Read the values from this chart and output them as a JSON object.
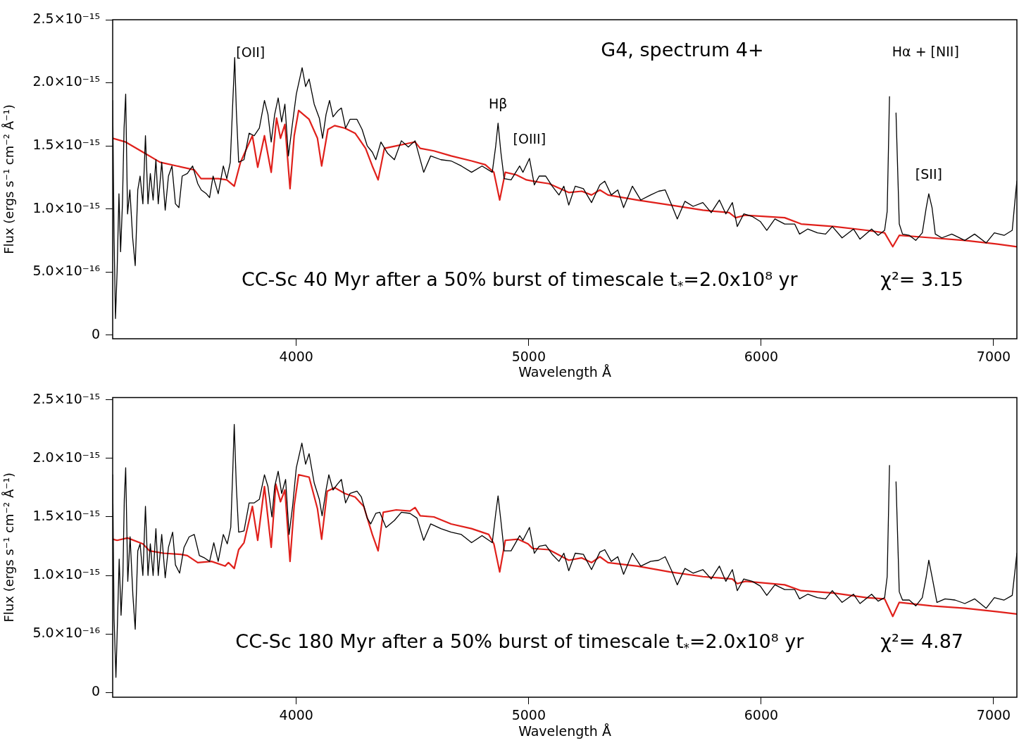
{
  "chart_data": [
    {
      "type": "line",
      "title": "G4, spectrum 4+",
      "xlabel": "Wavelength Å",
      "ylabel": "Flux (ergs s⁻¹ cm⁻² Å⁻¹)",
      "xlim": [
        3210,
        7100
      ],
      "xticks": [
        4000,
        5000,
        6000,
        7000
      ],
      "ylim": [
        -3e-17,
        2.5e-15
      ],
      "yticks": [
        0,
        {
          "value": 5e-16,
          "label": "5.0×10⁻¹⁶"
        },
        {
          "value": 1e-15,
          "label": "1.0×10⁻¹⁵"
        },
        {
          "value": 1.5e-15,
          "label": "1.5×10⁻¹⁵"
        },
        {
          "value": 2e-15,
          "label": "2.0×10⁻¹⁵"
        },
        {
          "value": 2.5e-15,
          "label": "2.5×10⁻¹⁵"
        }
      ],
      "series": [
        {
          "color": "#000000",
          "x": [
            3210,
            3216,
            3222,
            3229,
            3237,
            3244,
            3252,
            3259,
            3266,
            3274,
            3284,
            3296,
            3307,
            3318,
            3328,
            3340,
            3351,
            3362,
            3372,
            3384,
            3396,
            3406,
            3421,
            3436,
            3450,
            3465,
            3480,
            3495,
            3509,
            3531,
            3554,
            3576,
            3591,
            3613,
            3627,
            3642,
            3664,
            3686,
            3701,
            3716,
            3727,
            3735,
            3742,
            3752,
            3775,
            3797,
            3819,
            3841,
            3863,
            3878,
            3892,
            3907,
            3922,
            3937,
            3951,
            3966,
            3981,
            4000,
            4025,
            4040,
            4055,
            4077,
            4099,
            4113,
            4128,
            4143,
            4158,
            4180,
            4194,
            4212,
            4231,
            4261,
            4283,
            4305,
            4327,
            4342,
            4364,
            4393,
            4422,
            4452,
            4482,
            4511,
            4548,
            4578,
            4622,
            4666,
            4710,
            4754,
            4799,
            4843,
            4858,
            4868,
            4880,
            4894,
            4924,
            4961,
            4975,
            5003,
            5024,
            5045,
            5073,
            5101,
            5130,
            5151,
            5172,
            5200,
            5235,
            5270,
            5306,
            5327,
            5355,
            5383,
            5408,
            5446,
            5482,
            5524,
            5559,
            5587,
            5615,
            5639,
            5672,
            5707,
            5749,
            5785,
            5820,
            5848,
            5876,
            5897,
            5925,
            5961,
            5996,
            6024,
            6059,
            6101,
            6144,
            6165,
            6200,
            6242,
            6277,
            6306,
            6348,
            6397,
            6425,
            6475,
            6503,
            6531,
            6542,
            6552,
            6561,
            6570,
            6580,
            6594,
            6608,
            6637,
            6665,
            6693,
            6710,
            6721,
            6735,
            6749,
            6777,
            6820,
            6876,
            6918,
            6968,
            7003,
            7045,
            7080,
            7094,
            7100
          ],
          "values": [
            1.86e-15,
            7.7e-16,
            1.3e-16,
            5e-16,
            1.12e-15,
            6.6e-16,
            1.04e-15,
            1.64e-15,
            1.91e-15,
            9.6e-16,
            1.15e-15,
            7.7e-16,
            5.5e-16,
            1.15e-15,
            1.26e-15,
            1.04e-15,
            1.58e-15,
            1.04e-15,
            1.28e-15,
            1.07e-15,
            1.39e-15,
            1.04e-15,
            1.37e-15,
            9.9e-16,
            1.26e-15,
            1.34e-15,
            1.04e-15,
            1.01e-15,
            1.26e-15,
            1.28e-15,
            1.34e-15,
            1.2e-15,
            1.15e-15,
            1.12e-15,
            1.09e-15,
            1.26e-15,
            1.12e-15,
            1.34e-15,
            1.24e-15,
            1.37e-15,
            1.86e-15,
            2.2e-15,
            1.78e-15,
            1.37e-15,
            1.39e-15,
            1.6e-15,
            1.58e-15,
            1.64e-15,
            1.86e-15,
            1.75e-15,
            1.53e-15,
            1.75e-15,
            1.88e-15,
            1.69e-15,
            1.83e-15,
            1.42e-15,
            1.64e-15,
            1.91e-15,
            2.12e-15,
            1.97e-15,
            2.03e-15,
            1.83e-15,
            1.72e-15,
            1.56e-15,
            1.75e-15,
            1.86e-15,
            1.73e-15,
            1.78e-15,
            1.8e-15,
            1.64e-15,
            1.71e-15,
            1.71e-15,
            1.63e-15,
            1.5e-15,
            1.45e-15,
            1.39e-15,
            1.53e-15,
            1.44e-15,
            1.39e-15,
            1.54e-15,
            1.49e-15,
            1.54e-15,
            1.29e-15,
            1.42e-15,
            1.39e-15,
            1.38e-15,
            1.34e-15,
            1.29e-15,
            1.34e-15,
            1.29e-15,
            1.5e-15,
            1.68e-15,
            1.45e-15,
            1.24e-15,
            1.23e-15,
            1.34e-15,
            1.29e-15,
            1.4e-15,
            1.19e-15,
            1.26e-15,
            1.26e-15,
            1.18e-15,
            1.11e-15,
            1.18e-15,
            1.03e-15,
            1.18e-15,
            1.16e-15,
            1.05e-15,
            1.19e-15,
            1.22e-15,
            1.11e-15,
            1.15e-15,
            1.01e-15,
            1.18e-15,
            1.07e-15,
            1.11e-15,
            1.14e-15,
            1.15e-15,
            1.03e-15,
            9.2e-16,
            1.06e-15,
            1.02e-15,
            1.05e-15,
            9.7e-16,
            1.07e-15,
            9.6e-16,
            1.05e-15,
            8.6e-16,
            9.6e-16,
            9.4e-16,
            9e-16,
            8.3e-16,
            9.2e-16,
            8.8e-16,
            8.8e-16,
            8e-16,
            8.4e-16,
            8.1e-16,
            8e-16,
            8.6e-16,
            7.7e-16,
            8.4e-16,
            7.6e-16,
            8.4e-16,
            7.9e-16,
            8.3e-16,
            9.8e-16,
            1.89e-15,
            null,
            null,
            1.76e-15,
            8.8e-16,
            8e-16,
            7.9e-16,
            7.5e-16,
            8.1e-16,
            1.01e-15,
            1.12e-15,
            1.01e-15,
            8e-16,
            7.7e-16,
            8e-16,
            7.5e-16,
            8e-16,
            7.3e-16,
            8.1e-16,
            7.9e-16,
            8.3e-16,
            1.11e-15,
            1.22e-15
          ]
        },
        {
          "color": "#e0201b",
          "x": [
            3210,
            3266,
            3340,
            3414,
            3487,
            3561,
            3590,
            3664,
            3701,
            3733,
            3760,
            3811,
            3834,
            3863,
            3892,
            3915,
            3932,
            3951,
            3973,
            3991,
            4010,
            4055,
            4091,
            4109,
            4136,
            4165,
            4209,
            4253,
            4298,
            4327,
            4352,
            4379,
            4430,
            4482,
            4511,
            4533,
            4592,
            4666,
            4754,
            4813,
            4850,
            4875,
            4899,
            4946,
            4990,
            5017,
            5087,
            5172,
            5228,
            5270,
            5306,
            5341,
            5468,
            5608,
            5749,
            5862,
            5890,
            5932,
            6101,
            6172,
            6313,
            6454,
            6531,
            6566,
            6594,
            6735,
            6876,
            7017,
            7100
          ],
          "values": [
            1.56e-15,
            1.53e-15,
            1.45e-15,
            1.37e-15,
            1.34e-15,
            1.31e-15,
            1.24e-15,
            1.24e-15,
            1.23e-15,
            1.18e-15,
            1.37e-15,
            1.58e-15,
            1.33e-15,
            1.58e-15,
            1.29e-15,
            1.72e-15,
            1.56e-15,
            1.67e-15,
            1.16e-15,
            1.58e-15,
            1.78e-15,
            1.71e-15,
            1.56e-15,
            1.34e-15,
            1.63e-15,
            1.66e-15,
            1.64e-15,
            1.6e-15,
            1.48e-15,
            1.34e-15,
            1.23e-15,
            1.48e-15,
            1.5e-15,
            1.52e-15,
            1.53e-15,
            1.48e-15,
            1.46e-15,
            1.42e-15,
            1.38e-15,
            1.35e-15,
            1.29e-15,
            1.07e-15,
            1.29e-15,
            1.27e-15,
            1.23e-15,
            1.22e-15,
            1.2e-15,
            1.13e-15,
            1.14e-15,
            1.11e-15,
            1.15e-15,
            1.11e-15,
            1.07e-15,
            1.03e-15,
            9.9e-16,
            9.7e-16,
            9.3e-16,
            9.5e-16,
            9.3e-16,
            8.8e-16,
            8.6e-16,
            8.3e-16,
            8.1e-16,
            7e-16,
            7.9e-16,
            7.7e-16,
            7.5e-16,
            7.2e-16,
            7e-16
          ]
        }
      ],
      "annotations": [
        {
          "text": "[OII]",
          "x": 3735,
          "y": 2.2e-15
        },
        {
          "text": "Hβ",
          "x": 4868,
          "y": 1.68e-15
        },
        {
          "text": "[OIII]",
          "x": 5003,
          "y": 1.4e-15
        },
        {
          "text": "[SII]",
          "x": 6721,
          "y": 1.12e-15
        },
        "Hα + [NII]",
        "CC-Sc 40 Myr after a 50% burst of timescale t$_{*}$=2.0x10⁸ yr",
        "χ²= 3.15"
      ]
    },
    {
      "type": "line",
      "xlabel": "Wavelength Å",
      "ylabel": "Flux (ergs s⁻¹ cm⁻² Å⁻¹)",
      "xlim": [
        3210,
        7100
      ],
      "xticks": [
        4000,
        5000,
        6000,
        7000
      ],
      "ylim": [
        -4e-17,
        2.52e-15
      ],
      "yticks": [
        0,
        {
          "value": 5e-16,
          "label": "5.0×10⁻¹⁶"
        },
        {
          "value": 1e-15,
          "label": "1.0×10⁻¹⁵"
        },
        {
          "value": 1.5e-15,
          "label": "1.5×10⁻¹⁵"
        },
        {
          "value": 2e-15,
          "label": "2.0×10⁻¹⁵"
        },
        {
          "value": 2.5e-15,
          "label": "2.5×10⁻¹⁵"
        }
      ],
      "series": [
        {
          "color": "#000000",
          "x": [
            3210,
            3216,
            3224,
            3231,
            3238,
            3246,
            3254,
            3260,
            3266,
            3275,
            3285,
            3297,
            3307,
            3318,
            3328,
            3340,
            3351,
            3362,
            3372,
            3384,
            3396,
            3406,
            3421,
            3436,
            3450,
            3468,
            3480,
            3498,
            3517,
            3539,
            3561,
            3583,
            3605,
            3627,
            3645,
            3664,
            3686,
            3703,
            3718,
            3727,
            3733,
            3742,
            3752,
            3775,
            3797,
            3819,
            3841,
            3863,
            3878,
            3895,
            3907,
            3922,
            3937,
            3954,
            3969,
            3984,
            4000,
            4024,
            4040,
            4055,
            4077,
            4099,
            4111,
            4128,
            4140,
            4158,
            4177,
            4194,
            4212,
            4231,
            4261,
            4280,
            4305,
            4320,
            4342,
            4359,
            4386,
            4422,
            4452,
            4489,
            4519,
            4548,
            4578,
            4622,
            4666,
            4710,
            4754,
            4799,
            4843,
            4858,
            4868,
            4880,
            4894,
            4924,
            4961,
            4975,
            5003,
            5024,
            5045,
            5073,
            5101,
            5130,
            5151,
            5172,
            5200,
            5235,
            5270,
            5306,
            5327,
            5355,
            5383,
            5408,
            5446,
            5482,
            5524,
            5559,
            5587,
            5615,
            5639,
            5672,
            5707,
            5749,
            5785,
            5820,
            5848,
            5876,
            5897,
            5925,
            5961,
            5996,
            6024,
            6059,
            6101,
            6144,
            6165,
            6200,
            6242,
            6277,
            6306,
            6348,
            6397,
            6425,
            6475,
            6503,
            6531,
            6542,
            6552,
            6561,
            6570,
            6580,
            6594,
            6608,
            6637,
            6665,
            6693,
            6710,
            6721,
            6735,
            6756,
            6791,
            6834,
            6876,
            6918,
            6968,
            7003,
            7045,
            7080,
            7094,
            7100
          ],
          "values": [
            1.86e-15,
            6.3e-16,
            1.3e-16,
            6.3e-16,
            1.14e-15,
            6.6e-16,
            1e-15,
            1.65e-15,
            1.92e-15,
            9.5e-16,
            1.33e-15,
            8.3e-16,
            5.4e-16,
            1.21e-15,
            1.27e-15,
            1e-15,
            1.59e-15,
            1e-15,
            1.27e-15,
            1e-15,
            1.4e-15,
            1e-15,
            1.35e-15,
            9.8e-16,
            1.24e-15,
            1.37e-15,
            1.09e-15,
            1.02e-15,
            1.24e-15,
            1.33e-15,
            1.35e-15,
            1.17e-15,
            1.15e-15,
            1.12e-15,
            1.28e-15,
            1.12e-15,
            1.35e-15,
            1.27e-15,
            1.41e-15,
            1.91e-15,
            2.29e-15,
            1.76e-15,
            1.37e-15,
            1.38e-15,
            1.62e-15,
            1.62e-15,
            1.65e-15,
            1.86e-15,
            1.76e-15,
            1.5e-15,
            1.76e-15,
            1.89e-15,
            1.7e-15,
            1.82e-15,
            1.35e-15,
            1.59e-15,
            1.92e-15,
            2.13e-15,
            1.95e-15,
            2.04e-15,
            1.79e-15,
            1.65e-15,
            1.51e-15,
            1.73e-15,
            1.86e-15,
            1.73e-15,
            1.78e-15,
            1.82e-15,
            1.62e-15,
            1.7e-15,
            1.72e-15,
            1.67e-15,
            1.49e-15,
            1.44e-15,
            1.53e-15,
            1.54e-15,
            1.41e-15,
            1.47e-15,
            1.54e-15,
            1.53e-15,
            1.49e-15,
            1.3e-15,
            1.44e-15,
            1.4e-15,
            1.37e-15,
            1.35e-15,
            1.28e-15,
            1.34e-15,
            1.28e-15,
            1.53e-15,
            1.68e-15,
            1.47e-15,
            1.21e-15,
            1.21e-15,
            1.34e-15,
            1.3e-15,
            1.41e-15,
            1.19e-15,
            1.25e-15,
            1.26e-15,
            1.18e-15,
            1.12e-15,
            1.19e-15,
            1.04e-15,
            1.19e-15,
            1.18e-15,
            1.05e-15,
            1.2e-15,
            1.22e-15,
            1.12e-15,
            1.16e-15,
            1.01e-15,
            1.19e-15,
            1.08e-15,
            1.12e-15,
            1.13e-15,
            1.16e-15,
            1.04e-15,
            9.2e-16,
            1.06e-15,
            1.02e-15,
            1.05e-15,
            9.7e-16,
            1.08e-15,
            9.5e-16,
            1.05e-15,
            8.7e-16,
            9.7e-16,
            9.5e-16,
            9.1e-16,
            8.3e-16,
            9.2e-16,
            8.8e-16,
            8.8e-16,
            8e-16,
            8.4e-16,
            8.1e-16,
            8e-16,
            8.7e-16,
            7.7e-16,
            8.4e-16,
            7.6e-16,
            8.4e-16,
            7.8e-16,
            8.1e-16,
            9.9e-16,
            1.94e-15,
            null,
            null,
            1.8e-15,
            8.6e-16,
            7.9e-16,
            7.9e-16,
            7.4e-16,
            8.1e-16,
            9.9e-16,
            1.13e-15,
            9.9e-16,
            7.7e-16,
            8e-16,
            7.9e-16,
            7.6e-16,
            8e-16,
            7.2e-16,
            8.1e-16,
            7.9e-16,
            8.3e-16,
            1.08e-15,
            1.19e-15
          ]
        },
        {
          "color": "#e0201b",
          "x": [
            3210,
            3229,
            3274,
            3340,
            3369,
            3428,
            3502,
            3531,
            3576,
            3635,
            3694,
            3708,
            3733,
            3752,
            3775,
            3811,
            3834,
            3863,
            3892,
            3912,
            3932,
            3951,
            3973,
            3991,
            4010,
            4055,
            4091,
            4109,
            4133,
            4165,
            4209,
            4253,
            4290,
            4327,
            4352,
            4374,
            4430,
            4489,
            4511,
            4533,
            4592,
            4666,
            4754,
            4828,
            4850,
            4875,
            4899,
            4953,
            4997,
            5017,
            5087,
            5172,
            5228,
            5270,
            5306,
            5341,
            5468,
            5608,
            5749,
            5876,
            5897,
            5932,
            6101,
            6172,
            6313,
            6454,
            6531,
            6566,
            6594,
            6735,
            6876,
            7017,
            7100
          ],
          "values": [
            1.31e-15,
            1.3e-15,
            1.32e-15,
            1.27e-15,
            1.21e-15,
            1.19e-15,
            1.18e-15,
            1.17e-15,
            1.11e-15,
            1.12e-15,
            1.08e-15,
            1.11e-15,
            1.06e-15,
            1.22e-15,
            1.28e-15,
            1.59e-15,
            1.3e-15,
            1.76e-15,
            1.24e-15,
            1.78e-15,
            1.63e-15,
            1.73e-15,
            1.12e-15,
            1.6e-15,
            1.86e-15,
            1.84e-15,
            1.57e-15,
            1.31e-15,
            1.72e-15,
            1.75e-15,
            1.7e-15,
            1.67e-15,
            1.59e-15,
            1.35e-15,
            1.21e-15,
            1.54e-15,
            1.56e-15,
            1.55e-15,
            1.58e-15,
            1.51e-15,
            1.5e-15,
            1.44e-15,
            1.4e-15,
            1.35e-15,
            1.27e-15,
            1.03e-15,
            1.3e-15,
            1.31e-15,
            1.27e-15,
            1.23e-15,
            1.22e-15,
            1.13e-15,
            1.15e-15,
            1.11e-15,
            1.16e-15,
            1.11e-15,
            1.08e-15,
            1.03e-15,
            9.9e-16,
            9.7e-16,
            9.3e-16,
            9.5e-16,
            9.2e-16,
            8.7e-16,
            8.5e-16,
            8.1e-16,
            8e-16,
            6.5e-16,
            7.7e-16,
            7.4e-16,
            7.2e-16,
            6.9e-16,
            6.7e-16
          ]
        }
      ],
      "annotations": [
        "CC-Sc 180 Myr after a 50% burst of timescale t$_{*}$=2.0x10⁸ yr",
        "χ²= 4.87"
      ]
    }
  ]
}
